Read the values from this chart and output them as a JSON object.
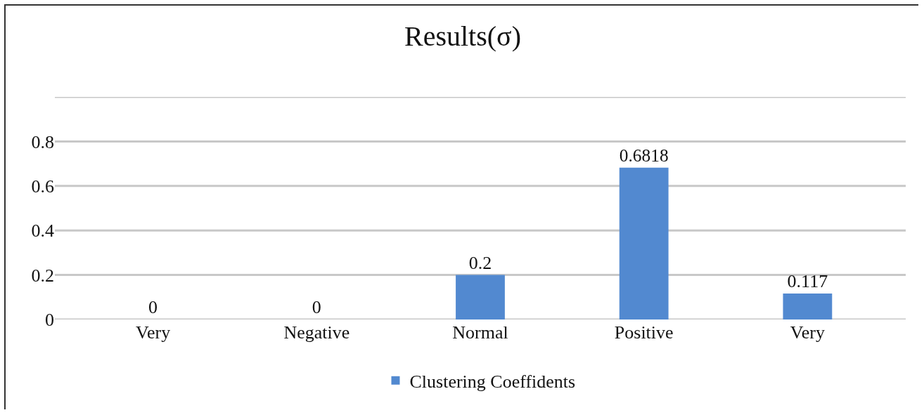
{
  "chart_data": {
    "type": "bar",
    "title": "Results(σ)",
    "categories": [
      "Very",
      "Negative",
      "Normal",
      "Positive",
      "Very"
    ],
    "series": [
      {
        "name": "Clustering Coeffidents",
        "color": "#5289d0",
        "values": [
          0,
          0,
          0.2,
          0.6818,
          0.117
        ]
      }
    ],
    "ylim": [
      0,
      1
    ],
    "yticks": [
      0,
      0.2,
      0.4,
      0.6,
      0.8,
      {
        "value": 1,
        "label": null
      }
    ],
    "grid": "y",
    "legend": "bottom",
    "data_labels": true
  }
}
